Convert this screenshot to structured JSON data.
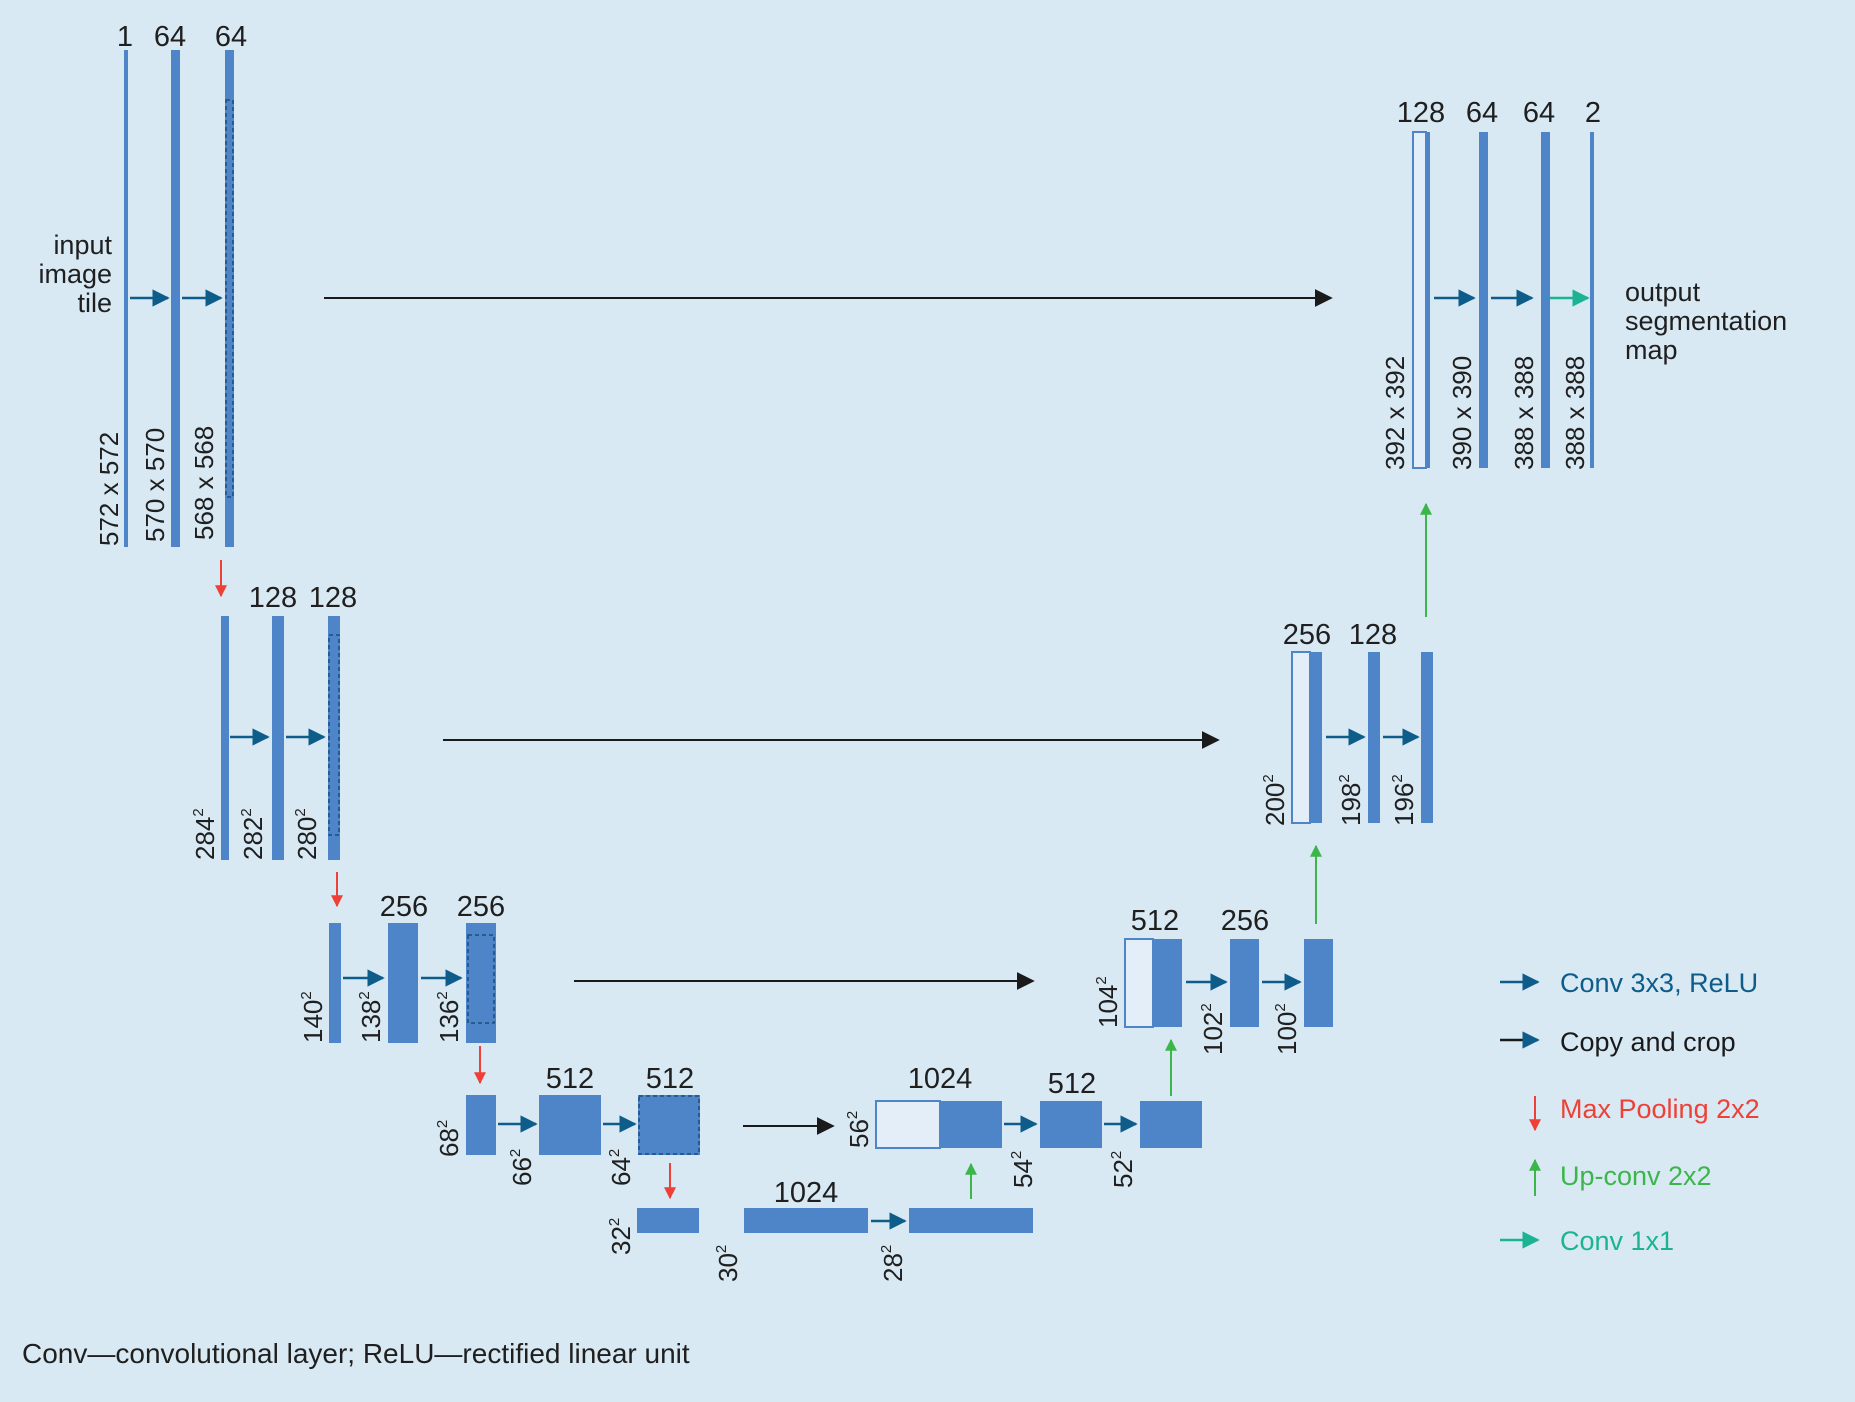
{
  "channels": {
    "l1": [
      "1",
      "64",
      "64"
    ],
    "l2": [
      "128",
      "128"
    ],
    "l3": [
      "256",
      "256"
    ],
    "l4": [
      "512",
      "512"
    ],
    "bottom": "1024",
    "up4": [
      "1024",
      "512"
    ],
    "up3": [
      "512",
      "256"
    ],
    "up2": [
      "256",
      "128"
    ],
    "out": [
      "128",
      "64",
      "64",
      "2"
    ]
  },
  "dims": {
    "l1": [
      "572 x 572",
      "570 x 570",
      "568 x 568"
    ],
    "l2": [
      "284",
      "282",
      "280"
    ],
    "l3": [
      "140",
      "138",
      "136"
    ],
    "l4": [
      "68",
      "66",
      "64"
    ],
    "bottom": [
      "32",
      "30",
      "28"
    ],
    "up4": [
      "56",
      "54",
      "52"
    ],
    "up3": [
      "104",
      "102",
      "100"
    ],
    "up2": [
      "200",
      "198",
      "196"
    ],
    "out": [
      "392 x 392",
      "390 x 390",
      "388 x 388",
      "388 x 388"
    ],
    "sup": "2"
  },
  "labels": {
    "input": [
      "input",
      "image",
      "tile"
    ],
    "output": [
      "output",
      "segmentation",
      "map"
    ]
  },
  "legend": [
    {
      "label": "Conv 3x3, ReLU",
      "color": "#0d5c8a",
      "icon": "arrow-right-icon"
    },
    {
      "label": "Copy and crop",
      "color": "#1a1a1a",
      "icon": "arrow-right-icon"
    },
    {
      "label": "Max Pooling 2x2",
      "color": "#ee4036",
      "icon": "arrow-down-icon"
    },
    {
      "label": "Up-conv 2x2",
      "color": "#3cb54a",
      "icon": "arrow-up-icon"
    },
    {
      "label": "Conv 1x1",
      "color": "#1bb394",
      "icon": "arrow-right-icon"
    }
  ],
  "footnote": "Conv—convolutional layer; ReLU—rectified linear unit",
  "colors": {
    "background": "#d8e9f3",
    "feature_map": "#4d85c8",
    "conv": "#0d5c8a",
    "copy": "#1a1a1a",
    "pool": "#ee4036",
    "upconv": "#3cb54a",
    "conv1x1": "#1bb394"
  }
}
